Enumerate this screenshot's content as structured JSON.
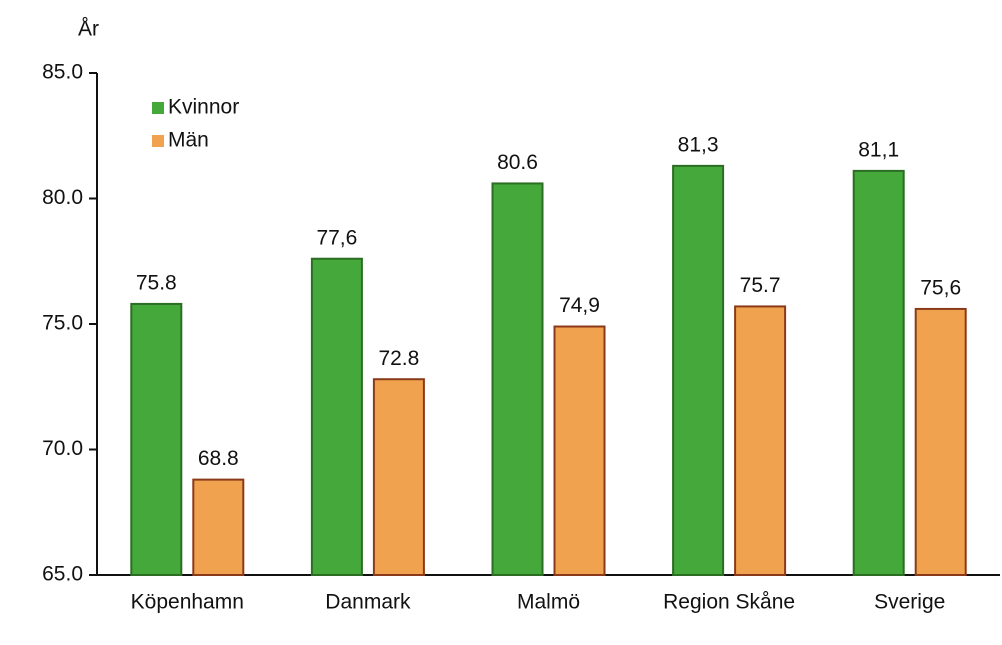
{
  "chart_data": {
    "type": "bar",
    "y_label": "År",
    "categories": [
      "Köpenhamn",
      "Danmark",
      "Malmö",
      "Region Skåne",
      "Sverige"
    ],
    "series": [
      {
        "name": "Kvinnor",
        "color": "#45a83b",
        "values": [
          75.8,
          77.6,
          80.6,
          81.3,
          81.1
        ],
        "value_labels": [
          "75.8",
          "77,6",
          "80.6",
          "81,3",
          "81,1"
        ]
      },
      {
        "name": "Män",
        "color": "#f0a24e",
        "values": [
          68.8,
          72.8,
          74.9,
          75.7,
          75.6
        ],
        "value_labels": [
          "68.8",
          "72.8",
          "74,9",
          "75.7",
          "75,6"
        ]
      }
    ],
    "ylim": [
      65,
      85
    ],
    "yticks": [
      {
        "value": 65,
        "label": "65.0"
      },
      {
        "value": 70,
        "label": "70.0"
      },
      {
        "value": 75,
        "label": "75.0"
      },
      {
        "value": 80,
        "label": "80.0"
      },
      {
        "value": 85,
        "label": "85.0"
      }
    ],
    "legend": "upper left",
    "grid": false
  }
}
